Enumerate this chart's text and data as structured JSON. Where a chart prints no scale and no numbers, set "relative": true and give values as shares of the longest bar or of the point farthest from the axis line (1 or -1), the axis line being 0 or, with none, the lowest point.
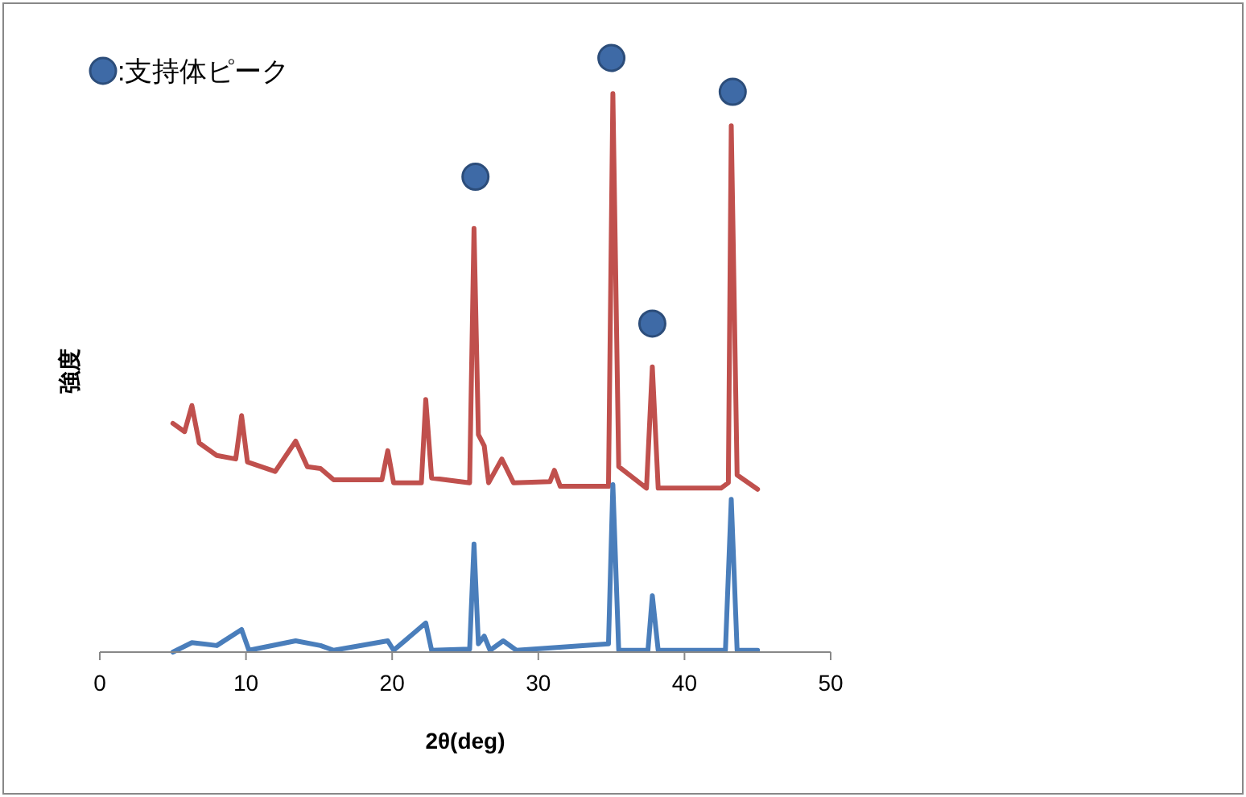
{
  "chart_data": {
    "type": "line",
    "relative": true,
    "xlabel": "2θ(deg)",
    "ylabel": "強度",
    "xlim": [
      0,
      50
    ],
    "xticks": [
      0,
      10,
      20,
      30,
      40,
      50
    ],
    "legend": "top left",
    "marker": "none",
    "line_style": "solid",
    "grid": false,
    "series": [
      {
        "color": "#c0504d",
        "x": [
          5,
          5.8,
          6.3,
          6.8,
          8,
          9.3,
          9.7,
          10.1,
          12,
          13.4,
          14.2,
          15.1,
          16,
          19.3,
          19.7,
          20.1,
          22,
          22.3,
          22.7,
          25.3,
          25.6,
          25.9,
          26.3,
          26.6,
          27.5,
          28.3,
          30.8,
          31.1,
          31.5,
          34.8,
          35.1,
          35.5,
          37.4,
          37.8,
          38.2,
          42.5,
          43,
          43.2,
          43.6,
          45
        ],
        "values": [
          0.385,
          0.371,
          0.415,
          0.352,
          0.331,
          0.325,
          0.398,
          0.32,
          0.304,
          0.355,
          0.312,
          0.309,
          0.29,
          0.29,
          0.339,
          0.285,
          0.285,
          0.425,
          0.293,
          0.285,
          0.713,
          0.366,
          0.347,
          0.285,
          0.325,
          0.285,
          0.287,
          0.306,
          0.279,
          0.279,
          0.94,
          0.312,
          0.276,
          0.48,
          0.276,
          0.276,
          0.285,
          0.886,
          0.298,
          0.274
        ]
      },
      {
        "color": "#4a7ebb",
        "x": [
          5,
          6.3,
          8,
          9.7,
          10.2,
          13.4,
          15.1,
          16,
          19.7,
          20.1,
          22.3,
          22.7,
          25.3,
          25.6,
          25.9,
          26.3,
          26.7,
          27.6,
          28.5,
          34.8,
          35.1,
          35.5,
          37.5,
          37.8,
          38.2,
          42.8,
          43.2,
          43.6,
          45
        ],
        "values": [
          0,
          0.016,
          0.011,
          0.038,
          0.003,
          0.019,
          0.011,
          0.003,
          0.019,
          0.003,
          0.049,
          0.003,
          0.005,
          0.182,
          0.014,
          0.027,
          0.003,
          0.019,
          0.003,
          0.014,
          0.282,
          0.003,
          0.003,
          0.095,
          0.003,
          0.003,
          0.257,
          0.003,
          0.003
        ]
      },
      {
        "type": "scatter",
        "name": ":支持体ピーク",
        "marker": "circle",
        "color": "#3e6aa6",
        "x": [
          25.7,
          35,
          37.8,
          43.3
        ],
        "values": [
          0.8,
          1,
          0.553,
          0.943
        ]
      }
    ]
  }
}
